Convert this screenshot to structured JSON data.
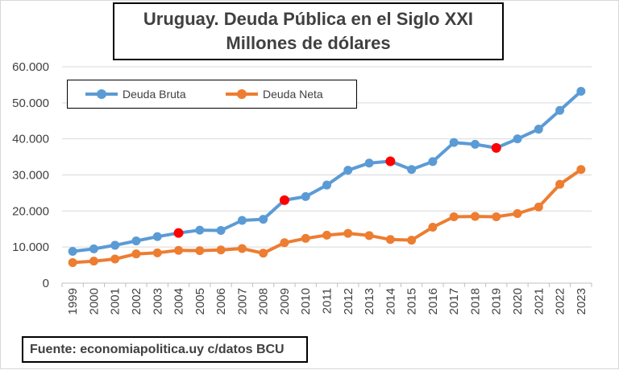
{
  "title": {
    "line1": "Uruguay. Deuda Pública en el Siglo XXI",
    "line2": "Millones de dólares"
  },
  "source": "Fuente: economiapolitica.uy c/datos BCU",
  "colors": {
    "bruta": "#5b9bd5",
    "neta": "#ed7d31",
    "highlight": "#ff0000",
    "grid": "#d9d9d9"
  },
  "chart_data": {
    "type": "line",
    "title": "Uruguay. Deuda Pública en el Siglo XXI",
    "subtitle": "Millones de dólares",
    "xlabel": "",
    "ylabel": "",
    "ylim": [
      0,
      60000
    ],
    "yticks": [
      0,
      10000,
      20000,
      30000,
      40000,
      50000,
      60000
    ],
    "ytick_labels": [
      "0",
      "10.000",
      "20.000",
      "30.000",
      "40.000",
      "50.000",
      "60.000"
    ],
    "grid": "horizontal",
    "legend_position": "top-left",
    "categories": [
      "1999",
      "2000",
      "2001",
      "2002",
      "2003",
      "2004",
      "2005",
      "2006",
      "2007",
      "2008",
      "2009",
      "2010",
      "2011",
      "2012",
      "2013",
      "2014",
      "2015",
      "2016",
      "2017",
      "2018",
      "2019",
      "2020",
      "2021",
      "2022",
      "2023"
    ],
    "series": [
      {
        "name": "Deuda Bruta",
        "color": "#5b9bd5",
        "values": [
          8800,
          9500,
          10500,
          11700,
          12900,
          13900,
          14700,
          14600,
          17400,
          17700,
          23000,
          24000,
          27200,
          31300,
          33300,
          33800,
          31500,
          33700,
          39000,
          38500,
          37500,
          40000,
          42700,
          47900,
          53200
        ],
        "highlighted_years": [
          "2004",
          "2009",
          "2014",
          "2019"
        ]
      },
      {
        "name": "Deuda Neta",
        "color": "#ed7d31",
        "values": [
          5700,
          6100,
          6700,
          8100,
          8400,
          9100,
          9000,
          9200,
          9600,
          8300,
          11200,
          12400,
          13300,
          13800,
          13200,
          12100,
          11900,
          15500,
          18400,
          18500,
          18400,
          19300,
          21100,
          27400,
          31500
        ]
      }
    ]
  }
}
